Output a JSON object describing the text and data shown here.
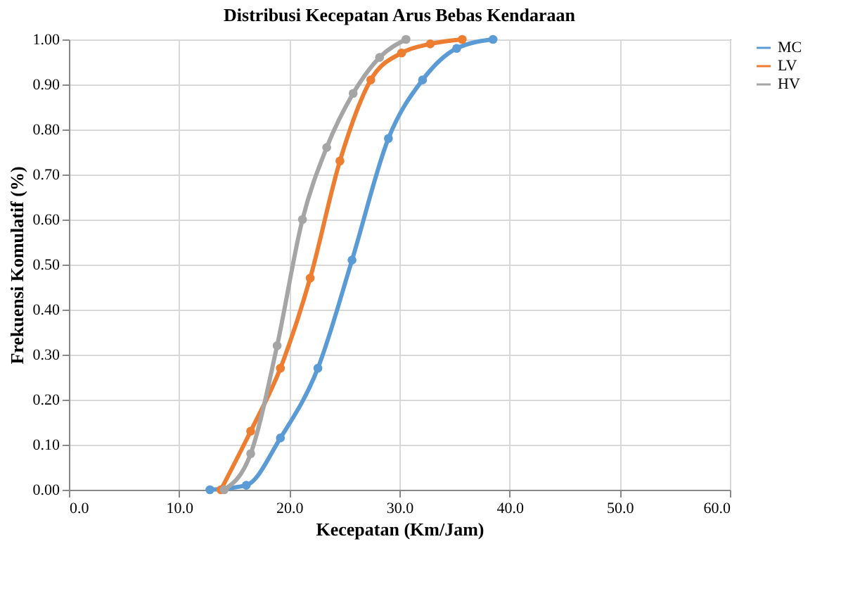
{
  "chart_data": {
    "type": "line",
    "title": "Distribusi Kecepatan Arus Bebas Kendaraan",
    "xlabel": "Kecepatan (Km/Jam)",
    "ylabel": "Frekuensi Komulatif (%)",
    "xlim": [
      0,
      60
    ],
    "xticks": [
      {
        "value": 0,
        "label": "0.0"
      },
      {
        "value": 10,
        "label": "10.0"
      },
      {
        "value": 20,
        "label": "20.0"
      },
      {
        "value": 30,
        "label": "30.0"
      },
      {
        "value": 40,
        "label": "40.0"
      },
      {
        "value": 50,
        "label": "50.0"
      },
      {
        "value": 60,
        "label": "60.0"
      }
    ],
    "ylim": [
      0,
      1
    ],
    "yticks": [
      {
        "value": 0,
        "label": "0.00"
      },
      {
        "value": 0.1,
        "label": "0.10"
      },
      {
        "value": 0.2,
        "label": "0.20"
      },
      {
        "value": 0.3,
        "label": "0.30"
      },
      {
        "value": 0.4,
        "label": "0.40"
      },
      {
        "value": 0.5,
        "label": "0.50"
      },
      {
        "value": 0.6,
        "label": "0.60"
      },
      {
        "value": 0.7,
        "label": "0.70"
      },
      {
        "value": 0.8,
        "label": "0.80"
      },
      {
        "value": 0.9,
        "label": "0.90"
      },
      {
        "value": 1,
        "label": "1.00"
      }
    ],
    "grid": true,
    "legend": "right",
    "marker": "circle",
    "line_style": "solid",
    "series": [
      {
        "name": "MC",
        "color": "#5b9bd5",
        "x": [
          12.8,
          16.1,
          19.2,
          22.6,
          25.7,
          29.0,
          32.1,
          35.2,
          38.5
        ],
        "values": [
          0,
          0.01,
          0.115,
          0.27,
          0.51,
          0.78,
          0.91,
          0.98,
          1.0
        ]
      },
      {
        "name": "LV",
        "color": "#ed7d31",
        "x": [
          13.8,
          16.5,
          19.2,
          21.9,
          24.6,
          27.4,
          30.2,
          32.8,
          35.7
        ],
        "values": [
          0,
          0.13,
          0.27,
          0.47,
          0.73,
          0.91,
          0.97,
          0.99,
          1.0
        ]
      },
      {
        "name": "HV",
        "color": "#a5a5a5",
        "x": [
          14.1,
          16.5,
          18.9,
          21.2,
          23.4,
          25.8,
          28.2,
          30.6
        ],
        "values": [
          0,
          0.08,
          0.32,
          0.6,
          0.76,
          0.88,
          0.96,
          1.0
        ]
      }
    ]
  }
}
